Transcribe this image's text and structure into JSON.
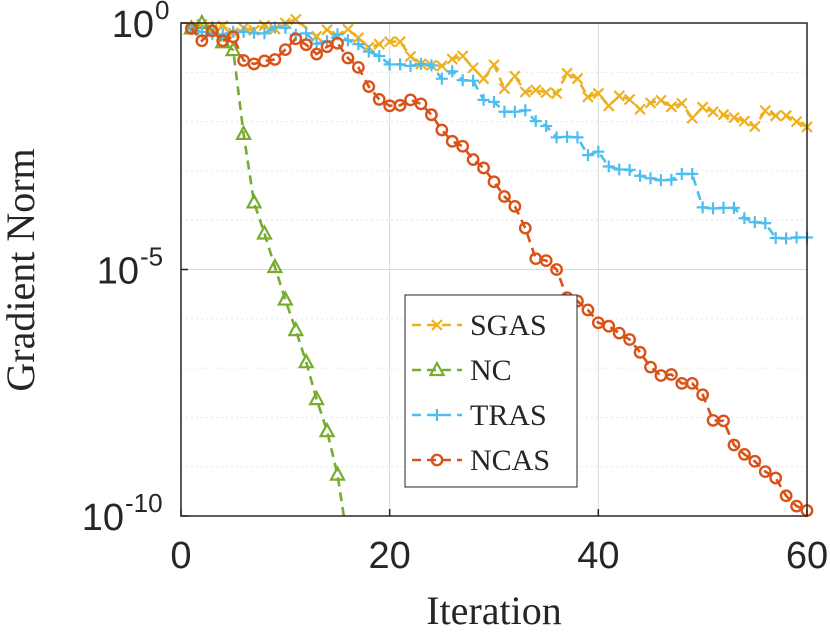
{
  "chart_data": {
    "type": "line",
    "title": "",
    "xlabel": "Iteration",
    "ylabel": "Gradient Norm",
    "xlim": [
      0,
      60
    ],
    "ylim_log10": [
      -10,
      0
    ],
    "y_scale": "log",
    "grid": true,
    "legend_position": "bottom-center",
    "x_ticks": [
      {
        "value": 0,
        "label": "0"
      },
      {
        "value": 20,
        "label": "20"
      },
      {
        "value": 40,
        "label": "40"
      },
      {
        "value": 60,
        "label": "60"
      }
    ],
    "y_ticks": [
      {
        "exp": 0,
        "base": "10",
        "sup": "0"
      },
      {
        "exp": -5,
        "base": "10",
        "sup": "-5"
      },
      {
        "exp": -10,
        "base": "10",
        "sup": "-10"
      }
    ],
    "series": [
      {
        "name": "SGAS",
        "color": "#EDB120",
        "marker": "x",
        "log10_values": [
          [
            1,
            -0.13
          ],
          [
            2,
            -0.03
          ],
          [
            3,
            -0.13
          ],
          [
            4,
            -0.06
          ],
          [
            5,
            -0.2
          ],
          [
            6,
            -0.1
          ],
          [
            7,
            -0.15
          ],
          [
            8,
            -0.05
          ],
          [
            9,
            -0.12
          ],
          [
            10,
            0.0
          ],
          [
            11,
            0.07
          ],
          [
            13,
            -0.27
          ],
          [
            14,
            -0.14
          ],
          [
            15,
            -0.27
          ],
          [
            16,
            -0.13
          ],
          [
            17,
            -0.3
          ],
          [
            18,
            -0.49
          ],
          [
            19,
            -0.43
          ],
          [
            20,
            -0.38
          ],
          [
            21,
            -0.38
          ],
          [
            22,
            -0.68
          ],
          [
            23,
            -0.83
          ],
          [
            24,
            -0.86
          ],
          [
            25,
            -0.87
          ],
          [
            26,
            -0.73
          ],
          [
            27,
            -0.67
          ],
          [
            28,
            -0.91
          ],
          [
            29,
            -1.13
          ],
          [
            30,
            -0.85
          ],
          [
            31,
            -1.33
          ],
          [
            32,
            -1.08
          ],
          [
            33,
            -1.4
          ],
          [
            34,
            -1.36
          ],
          [
            35,
            -1.41
          ],
          [
            36,
            -1.43
          ],
          [
            37,
            -1.02
          ],
          [
            38,
            -1.13
          ],
          [
            39,
            -1.5
          ],
          [
            40,
            -1.43
          ],
          [
            41,
            -1.68
          ],
          [
            42,
            -1.48
          ],
          [
            43,
            -1.55
          ],
          [
            44,
            -1.75
          ],
          [
            45,
            -1.62
          ],
          [
            46,
            -1.57
          ],
          [
            47,
            -1.7
          ],
          [
            48,
            -1.63
          ],
          [
            49,
            -1.93
          ],
          [
            50,
            -1.71
          ],
          [
            51,
            -1.8
          ],
          [
            52,
            -1.86
          ],
          [
            53,
            -1.92
          ],
          [
            54,
            -1.99
          ],
          [
            55,
            -2.1
          ],
          [
            56,
            -1.78
          ],
          [
            57,
            -1.88
          ],
          [
            58,
            -1.88
          ],
          [
            59,
            -2.0
          ],
          [
            60,
            -2.11
          ]
        ]
      },
      {
        "name": "NC",
        "color": "#77AC30",
        "marker": "triangle",
        "log10_values": [
          [
            1,
            -0.11
          ],
          [
            2,
            0.0
          ],
          [
            3,
            -0.14
          ],
          [
            4,
            -0.39
          ],
          [
            5,
            -0.55
          ],
          [
            6,
            -2.25
          ],
          [
            7,
            -3.64
          ],
          [
            8,
            -4.27
          ],
          [
            9,
            -4.95
          ],
          [
            10,
            -5.61
          ],
          [
            11,
            -6.23
          ],
          [
            12,
            -6.88
          ],
          [
            13,
            -7.63
          ],
          [
            14,
            -8.28
          ],
          [
            15,
            -9.16
          ],
          [
            15.6,
            -10.0
          ]
        ]
      },
      {
        "name": "TRAS",
        "color": "#4DBEEE",
        "marker": "plus",
        "log10_values": [
          [
            1,
            -0.12
          ],
          [
            2,
            -0.18
          ],
          [
            3,
            -0.22
          ],
          [
            4,
            -0.23
          ],
          [
            5,
            -0.18
          ],
          [
            6,
            -0.18
          ],
          [
            7,
            -0.2
          ],
          [
            8,
            -0.21
          ],
          [
            9,
            -0.09
          ],
          [
            10,
            -0.1
          ],
          [
            11,
            -0.24
          ],
          [
            12,
            -0.21
          ],
          [
            13,
            -0.42
          ],
          [
            14,
            -0.37
          ],
          [
            15,
            -0.23
          ],
          [
            16,
            -0.35
          ],
          [
            17,
            -0.43
          ],
          [
            18,
            -0.58
          ],
          [
            19,
            -0.67
          ],
          [
            20,
            -0.84
          ],
          [
            21,
            -0.84
          ],
          [
            22,
            -0.87
          ],
          [
            23,
            -0.83
          ],
          [
            24,
            -0.86
          ],
          [
            25,
            -1.13
          ],
          [
            26,
            -0.98
          ],
          [
            27,
            -1.16
          ],
          [
            28,
            -1.17
          ],
          [
            29,
            -1.56
          ],
          [
            30,
            -1.6
          ],
          [
            31,
            -1.8
          ],
          [
            32,
            -1.8
          ],
          [
            33,
            -1.77
          ],
          [
            34,
            -1.99
          ],
          [
            35,
            -2.09
          ],
          [
            36,
            -2.32
          ],
          [
            37,
            -2.31
          ],
          [
            38,
            -2.32
          ],
          [
            39,
            -2.68
          ],
          [
            40,
            -2.61
          ],
          [
            41,
            -2.91
          ],
          [
            42,
            -2.97
          ],
          [
            43,
            -2.98
          ],
          [
            44,
            -3.1
          ],
          [
            45,
            -3.15
          ],
          [
            46,
            -3.19
          ],
          [
            47,
            -3.18
          ],
          [
            48,
            -3.06
          ],
          [
            49,
            -3.06
          ],
          [
            50,
            -3.74
          ],
          [
            51,
            -3.76
          ],
          [
            52,
            -3.75
          ],
          [
            53,
            -3.75
          ],
          [
            54,
            -3.96
          ],
          [
            55,
            -4.04
          ],
          [
            56,
            -4.06
          ],
          [
            57,
            -4.36
          ],
          [
            58,
            -4.37
          ],
          [
            59,
            -4.35
          ],
          [
            60,
            -4.35
          ]
        ]
      },
      {
        "name": "NCAS",
        "color": "#D95319",
        "marker": "circle",
        "log10_values": [
          [
            1,
            -0.11
          ],
          [
            2,
            -0.36
          ],
          [
            3,
            -0.16
          ],
          [
            4,
            -0.36
          ],
          [
            5,
            -0.28
          ],
          [
            6,
            -0.76
          ],
          [
            7,
            -0.83
          ],
          [
            8,
            -0.77
          ],
          [
            9,
            -0.74
          ],
          [
            10,
            -0.54
          ],
          [
            11,
            -0.32
          ],
          [
            12,
            -0.44
          ],
          [
            13,
            -0.63
          ],
          [
            14,
            -0.48
          ],
          [
            15,
            -0.41
          ],
          [
            16,
            -0.71
          ],
          [
            17,
            -0.9
          ],
          [
            18,
            -1.29
          ],
          [
            19,
            -1.55
          ],
          [
            20,
            -1.68
          ],
          [
            21,
            -1.67
          ],
          [
            22,
            -1.56
          ],
          [
            23,
            -1.64
          ],
          [
            24,
            -1.86
          ],
          [
            25,
            -2.17
          ],
          [
            26,
            -2.4
          ],
          [
            27,
            -2.5
          ],
          [
            28,
            -2.77
          ],
          [
            29,
            -2.94
          ],
          [
            30,
            -3.22
          ],
          [
            31,
            -3.52
          ],
          [
            32,
            -3.72
          ],
          [
            33,
            -4.16
          ],
          [
            34,
            -4.78
          ],
          [
            35,
            -4.82
          ],
          [
            36,
            -5.0
          ],
          [
            37,
            -5.57
          ],
          [
            38,
            -5.64
          ],
          [
            39,
            -5.82
          ],
          [
            40,
            -6.08
          ],
          [
            41,
            -6.15
          ],
          [
            42,
            -6.29
          ],
          [
            43,
            -6.42
          ],
          [
            44,
            -6.68
          ],
          [
            45,
            -6.98
          ],
          [
            46,
            -7.15
          ],
          [
            47,
            -7.13
          ],
          [
            48,
            -7.31
          ],
          [
            49,
            -7.31
          ],
          [
            50,
            -7.54
          ],
          [
            51,
            -8.06
          ],
          [
            52,
            -8.07
          ],
          [
            53,
            -8.56
          ],
          [
            54,
            -8.75
          ],
          [
            55,
            -8.89
          ],
          [
            56,
            -9.1
          ],
          [
            57,
            -9.23
          ],
          [
            58,
            -9.59
          ],
          [
            59,
            -9.8
          ],
          [
            60,
            -9.89
          ]
        ]
      }
    ]
  }
}
